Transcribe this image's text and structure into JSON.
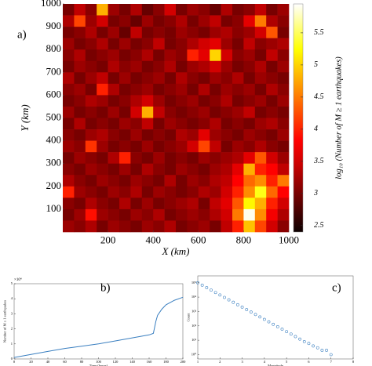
{
  "chart_data": [
    {
      "type": "heatmap",
      "panel_label": "a)",
      "xlabel": "X (km)",
      "ylabel": "Y (km)",
      "colorbar_label": "log₁₀ (Number of M ≥ 1 earthquakes)",
      "colormap": "hot",
      "xlim": [
        0,
        1000
      ],
      "ylim": [
        0,
        1000
      ],
      "xticks": [
        200,
        400,
        600,
        800,
        1000
      ],
      "yticks": [
        100,
        200,
        300,
        400,
        500,
        600,
        700,
        800,
        900,
        1000
      ],
      "clim": [
        2.4,
        5.95
      ],
      "cticks": [
        2.5,
        3,
        3.5,
        4,
        4.5,
        5,
        5.5
      ],
      "z": [
        [
          3.0,
          3.4,
          3.1,
          4.8,
          3.2,
          3.0,
          3.3,
          2.9,
          3.1,
          3.5,
          3.0,
          3.2,
          3.1,
          2.9,
          3.3,
          3.0,
          3.1,
          3.4,
          3.0,
          3.2
        ],
        [
          3.3,
          4.2,
          3.2,
          3.5,
          3.0,
          3.1,
          2.9,
          3.2,
          3.0,
          3.1,
          3.3,
          3.0,
          3.2,
          3.4,
          3.0,
          3.1,
          3.6,
          4.5,
          3.3,
          3.1
        ],
        [
          3.0,
          3.1,
          3.3,
          3.0,
          3.2,
          2.9,
          3.4,
          3.0,
          3.1,
          3.0,
          3.2,
          3.1,
          3.0,
          3.2,
          3.3,
          3.1,
          3.2,
          3.5,
          4.3,
          3.0
        ],
        [
          3.2,
          3.0,
          3.1,
          3.3,
          3.0,
          3.2,
          3.0,
          3.1,
          3.4,
          3.0,
          3.1,
          3.3,
          3.5,
          3.6,
          3.2,
          3.0,
          3.4,
          3.1,
          3.2,
          3.3
        ],
        [
          3.1,
          3.3,
          3.0,
          3.1,
          3.2,
          3.0,
          3.1,
          3.3,
          3.0,
          3.2,
          3.1,
          4.0,
          3.6,
          5.0,
          3.5,
          3.1,
          3.2,
          3.0,
          3.4,
          3.1
        ],
        [
          3.0,
          3.2,
          3.1,
          3.0,
          3.3,
          3.1,
          3.2,
          3.0,
          3.1,
          3.3,
          3.0,
          3.2,
          3.3,
          3.5,
          3.2,
          3.0,
          3.1,
          3.3,
          3.0,
          3.2
        ],
        [
          3.3,
          3.0,
          3.2,
          3.4,
          3.0,
          3.2,
          3.0,
          3.1,
          3.2,
          3.0,
          3.3,
          3.1,
          3.0,
          3.2,
          3.1,
          3.3,
          3.0,
          3.2,
          3.1,
          3.0
        ],
        [
          3.1,
          3.2,
          3.0,
          4.0,
          3.3,
          3.0,
          3.1,
          3.2,
          3.0,
          3.1,
          3.2,
          3.0,
          3.3,
          3.0,
          3.2,
          3.1,
          3.2,
          3.0,
          3.3,
          3.1
        ],
        [
          3.0,
          3.1,
          3.3,
          3.2,
          3.0,
          3.1,
          3.3,
          3.5,
          3.2,
          3.0,
          3.1,
          3.2,
          3.0,
          3.1,
          3.3,
          3.0,
          3.1,
          3.2,
          3.0,
          3.2
        ],
        [
          3.2,
          3.0,
          3.1,
          3.0,
          3.2,
          3.0,
          3.5,
          4.8,
          3.4,
          3.1,
          3.0,
          3.1,
          3.2,
          3.0,
          3.1,
          3.2,
          3.4,
          3.0,
          3.1,
          3.0
        ],
        [
          3.0,
          3.3,
          3.0,
          3.1,
          3.0,
          3.2,
          3.1,
          3.4,
          3.0,
          3.2,
          3.1,
          3.0,
          3.1,
          3.3,
          3.0,
          3.1,
          3.0,
          3.2,
          3.3,
          3.1
        ],
        [
          3.1,
          3.0,
          3.2,
          3.3,
          3.1,
          3.0,
          3.2,
          3.0,
          3.1,
          3.0,
          3.3,
          3.2,
          3.6,
          3.2,
          3.1,
          3.0,
          3.2,
          3.1,
          3.0,
          3.2
        ],
        [
          3.2,
          3.1,
          4.1,
          3.2,
          3.0,
          3.1,
          3.0,
          3.2,
          3.0,
          3.1,
          3.2,
          3.5,
          4.2,
          3.4,
          3.0,
          3.2,
          3.1,
          3.3,
          3.1,
          3.0
        ],
        [
          3.0,
          3.2,
          3.1,
          3.0,
          3.3,
          4.0,
          3.1,
          3.0,
          3.2,
          3.0,
          3.1,
          3.0,
          3.2,
          3.1,
          3.2,
          3.3,
          3.6,
          4.3,
          3.5,
          3.2
        ],
        [
          3.1,
          3.0,
          3.2,
          3.1,
          3.0,
          3.2,
          3.0,
          3.3,
          3.1,
          3.0,
          3.2,
          3.1,
          3.0,
          3.2,
          3.3,
          3.6,
          4.8,
          4.0,
          3.8,
          3.4
        ],
        [
          3.3,
          3.1,
          3.0,
          3.2,
          3.1,
          3.0,
          3.2,
          3.1,
          3.0,
          3.3,
          3.0,
          3.2,
          3.1,
          3.3,
          3.4,
          3.8,
          4.4,
          4.6,
          4.0,
          4.5
        ],
        [
          4.0,
          3.2,
          3.1,
          3.0,
          3.2,
          3.1,
          3.3,
          3.0,
          3.2,
          3.1,
          3.0,
          3.1,
          3.3,
          3.2,
          3.5,
          4.0,
          4.6,
          5.3,
          4.4,
          3.8
        ],
        [
          3.1,
          3.0,
          3.3,
          3.1,
          3.0,
          3.3,
          3.0,
          3.2,
          3.0,
          3.1,
          3.2,
          3.3,
          3.0,
          3.4,
          3.6,
          4.3,
          5.2,
          4.8,
          4.0,
          3.5
        ],
        [
          3.0,
          3.2,
          3.9,
          3.2,
          3.1,
          3.0,
          3.2,
          3.1,
          3.3,
          3.0,
          3.1,
          3.2,
          3.1,
          3.3,
          3.5,
          4.5,
          5.9,
          4.6,
          3.7,
          3.3
        ],
        [
          3.2,
          3.1,
          3.3,
          3.0,
          3.2,
          3.1,
          3.0,
          3.2,
          3.1,
          3.3,
          3.0,
          3.1,
          3.2,
          3.0,
          3.4,
          4.0,
          4.9,
          4.2,
          3.5,
          3.1
        ]
      ]
    },
    {
      "type": "line",
      "panel_label": "b)",
      "xlabel": "Time (hours)",
      "ylabel": "Number of M ≥ 1 earthquakes",
      "y_multiplier": "×10⁴",
      "color": "#3a7fc0",
      "xlim": [
        0,
        200
      ],
      "ylim": [
        0,
        5
      ],
      "xticks": [
        0,
        20,
        40,
        60,
        80,
        100,
        120,
        140,
        160,
        180,
        200
      ],
      "yticks": [
        0,
        1,
        2,
        3,
        4,
        5
      ],
      "x": [
        0,
        20,
        40,
        60,
        80,
        100,
        120,
        140,
        160,
        165,
        168,
        170,
        175,
        180,
        190,
        200
      ],
      "values": [
        0.1,
        0.3,
        0.5,
        0.7,
        0.85,
        1.0,
        1.2,
        1.4,
        1.6,
        1.7,
        2.5,
        2.9,
        3.3,
        3.6,
        3.9,
        4.1
      ]
    },
    {
      "type": "scatter",
      "panel_label": "c)",
      "xlabel": "Magnitude",
      "ylabel": "Count",
      "log_y": true,
      "color": "#3a7fc0",
      "xlim": [
        1,
        8
      ],
      "ylim": [
        0.5,
        300000
      ],
      "xticks": [
        1,
        2,
        3,
        4,
        5,
        6,
        7,
        8
      ],
      "yticks": [
        {
          "value": 1,
          "label": "10⁰"
        },
        {
          "value": 10,
          "label": "10¹"
        },
        {
          "value": 100,
          "label": "10²"
        },
        {
          "value": 1000,
          "label": "10³"
        },
        {
          "value": 10000,
          "label": "10⁴"
        },
        {
          "value": 100000,
          "label": "10⁵"
        }
      ],
      "x": [
        1.0,
        1.2,
        1.4,
        1.6,
        1.8,
        2.0,
        2.2,
        2.4,
        2.6,
        2.8,
        3.0,
        3.2,
        3.4,
        3.6,
        3.8,
        4.0,
        4.2,
        4.4,
        4.6,
        4.8,
        5.0,
        5.2,
        5.4,
        5.6,
        5.8,
        6.0,
        6.2,
        6.4,
        6.6,
        6.8,
        7.0
      ],
      "values": [
        100000,
        67600,
        45700,
        30900,
        20900,
        14100,
        9550,
        6460,
        4370,
        2950,
        2000,
        1350,
        912,
        617,
        417,
        282,
        191,
        129,
        87,
        59,
        40,
        27,
        18,
        12,
        8,
        6,
        4,
        3,
        2,
        2,
        1
      ]
    }
  ]
}
